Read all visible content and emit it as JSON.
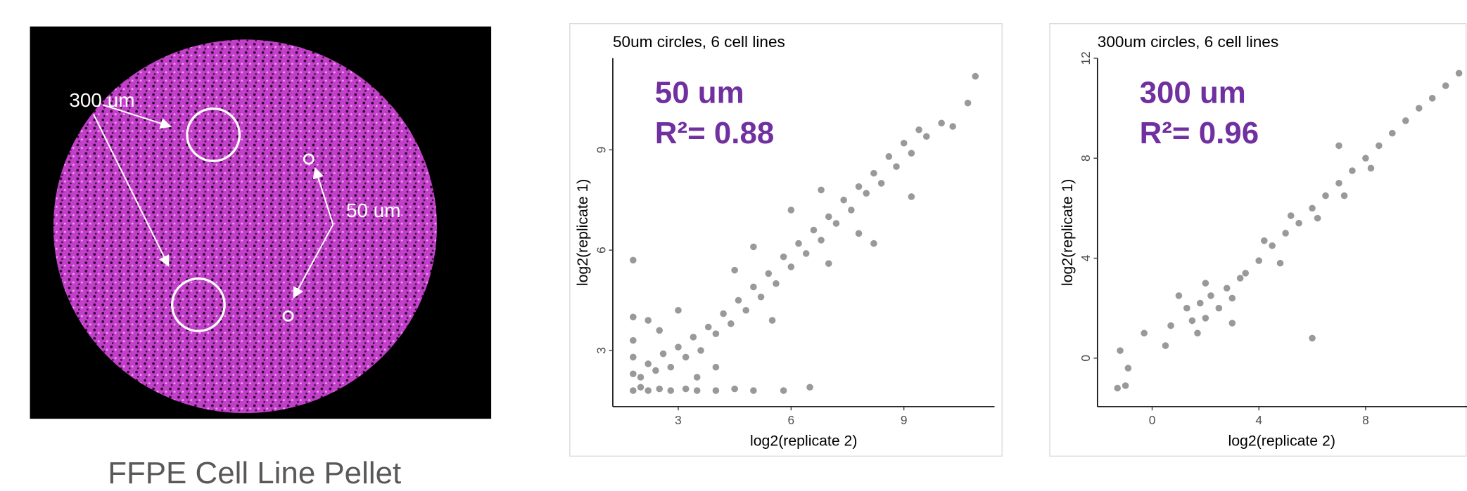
{
  "image": {
    "labels": [
      "300 um",
      "50 um"
    ],
    "caption": "FFPE Cell Line Pellet"
  },
  "chart_data": [
    {
      "type": "scatter",
      "title": "50um circles, 6 cell lines",
      "x_label": "log2(replicate 2)",
      "y_label": "log2(replicate 1)",
      "annotations": [
        "50 um",
        "R²= 0.88"
      ],
      "color": "#000000",
      "annotation_color": "#7030a0",
      "xlim": [
        1.26,
        11.41
      ],
      "ylim": [
        1.32,
        11.74
      ],
      "xticks": [
        3,
        6,
        9
      ],
      "yticks": [
        3,
        6,
        9
      ],
      "grid": false,
      "x": [
        1.8,
        2.0,
        2.2,
        2.5,
        2.8,
        3.2,
        3.5,
        4.0,
        4.5,
        5.0,
        5.8,
        6.5,
        1.8,
        1.8,
        1.8,
        1.8,
        1.8,
        2.0,
        2.2,
        2.4,
        2.6,
        2.8,
        3.0,
        3.2,
        3.4,
        3.6,
        3.8,
        4.0,
        4.2,
        4.4,
        4.6,
        4.8,
        5.0,
        5.2,
        5.4,
        5.6,
        5.8,
        6.0,
        6.2,
        6.4,
        6.6,
        6.8,
        7.0,
        7.2,
        7.4,
        7.6,
        7.8,
        8.0,
        8.2,
        8.4,
        8.6,
        8.8,
        9.0,
        9.2,
        9.4,
        9.6,
        10.0,
        10.3,
        10.7,
        10.9,
        2.5,
        3.0,
        4.0,
        4.5,
        5.5,
        6.0,
        7.0,
        8.2,
        9.2,
        2.2,
        3.5,
        5.0,
        6.8,
        7.8
      ],
      "y": [
        1.8,
        1.9,
        1.8,
        1.85,
        1.8,
        1.85,
        1.8,
        1.8,
        1.85,
        1.8,
        1.8,
        1.9,
        2.3,
        2.8,
        3.3,
        4.0,
        5.7,
        2.2,
        2.6,
        2.4,
        2.9,
        2.5,
        3.1,
        2.8,
        3.4,
        3.0,
        3.7,
        3.5,
        4.1,
        3.8,
        4.5,
        4.2,
        4.9,
        4.6,
        5.3,
        5.0,
        5.8,
        5.5,
        6.2,
        5.9,
        6.6,
        6.3,
        7.0,
        6.8,
        7.5,
        7.2,
        7.9,
        7.7,
        8.3,
        8.0,
        8.8,
        8.5,
        9.2,
        8.9,
        9.6,
        9.4,
        9.8,
        9.7,
        10.4,
        11.2,
        3.6,
        4.2,
        2.5,
        5.4,
        3.9,
        7.2,
        5.6,
        6.2,
        7.6,
        3.9,
        2.2,
        6.1,
        7.8,
        6.5
      ]
    },
    {
      "type": "scatter",
      "title": "300um circles, 6 cell lines",
      "x_label": "log2(replicate 2)",
      "y_label": "log2(replicate 1)",
      "annotations": [
        "300 um",
        "R²= 0.96"
      ],
      "color": "#000000",
      "annotation_color": "#7030a0",
      "xlim": [
        -2.05,
        11.8
      ],
      "ylim": [
        -1.94,
        12
      ],
      "xticks": [
        0,
        4,
        8
      ],
      "yticks": [
        0,
        4,
        8,
        12
      ],
      "grid": false,
      "x": [
        -1.3,
        -1.0,
        -0.9,
        -1.2,
        -0.3,
        0.5,
        0.7,
        6.0,
        1.0,
        1.5,
        1.8,
        2.0,
        2.2,
        2.5,
        2.8,
        3.0,
        3.3,
        1.3,
        2.0,
        1.7,
        3.5,
        4.0,
        4.5,
        5.0,
        5.5,
        6.0,
        6.5,
        7.0,
        7.5,
        8.0,
        8.5,
        9.0,
        9.5,
        10.0,
        10.5,
        11.0,
        11.5,
        4.2,
        5.2,
        6.2,
        7.2,
        8.2,
        7.0,
        4.8,
        3.0
      ],
      "y": [
        -1.2,
        -1.1,
        -0.4,
        0.3,
        1.0,
        0.5,
        1.3,
        0.8,
        2.5,
        1.5,
        2.2,
        1.6,
        2.5,
        2.0,
        2.8,
        2.4,
        3.2,
        2.0,
        3.0,
        1.0,
        3.4,
        3.9,
        4.5,
        5.0,
        5.4,
        6.0,
        6.5,
        7.0,
        7.5,
        8.0,
        8.5,
        9.0,
        9.5,
        10.0,
        10.4,
        10.9,
        11.4,
        4.7,
        5.7,
        5.6,
        6.5,
        7.6,
        8.5,
        3.8,
        1.4
      ]
    }
  ]
}
